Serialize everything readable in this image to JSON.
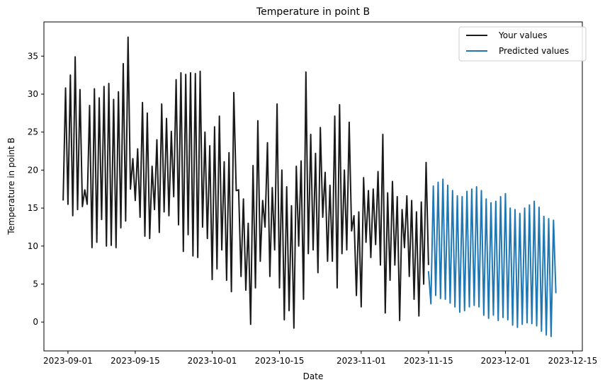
{
  "chart_data": {
    "type": "line",
    "title": "Temperature in point B",
    "xlabel": "Date",
    "ylabel": "Temperature in point B",
    "xlim": [
      "2023-08-27",
      "2023-12-17"
    ],
    "ylim": [
      -3.8,
      39.5
    ],
    "grid": false,
    "legend_position": "top-right",
    "x_ticks": [
      "2023-09-01",
      "2023-09-15",
      "2023-10-01",
      "2023-10-15",
      "2023-11-01",
      "2023-11-15",
      "2023-12-01",
      "2023-12-15"
    ],
    "y_ticks": [
      0,
      5,
      10,
      15,
      20,
      25,
      30,
      35
    ],
    "series": [
      {
        "name": "Your values",
        "color": "#1a1a1a",
        "points": [
          [
            "2023-08-31 00:00",
            16.0
          ],
          [
            "2023-08-31 12:00",
            30.8
          ],
          [
            "2023-09-01 00:00",
            15.5
          ],
          [
            "2023-09-01 12:00",
            32.5
          ],
          [
            "2023-09-02 00:00",
            14.0
          ],
          [
            "2023-09-02 12:00",
            34.9
          ],
          [
            "2023-09-03 00:00",
            14.8
          ],
          [
            "2023-09-03 12:00",
            30.6
          ],
          [
            "2023-09-04 00:00",
            15.2
          ],
          [
            "2023-09-04 12:00",
            17.4
          ],
          [
            "2023-09-05 00:00",
            15.5
          ],
          [
            "2023-09-05 12:00",
            28.5
          ],
          [
            "2023-09-06 00:00",
            9.8
          ],
          [
            "2023-09-06 12:00",
            30.7
          ],
          [
            "2023-09-07 00:00",
            10.5
          ],
          [
            "2023-09-07 12:00",
            29.5
          ],
          [
            "2023-09-08 00:00",
            13.5
          ],
          [
            "2023-09-08 12:00",
            31.0
          ],
          [
            "2023-09-09 00:00",
            10.0
          ],
          [
            "2023-09-09 12:00",
            31.4
          ],
          [
            "2023-09-10 00:00",
            10.1
          ],
          [
            "2023-09-10 12:00",
            29.3
          ],
          [
            "2023-09-11 00:00",
            9.8
          ],
          [
            "2023-09-11 12:00",
            30.3
          ],
          [
            "2023-09-12 00:00",
            12.4
          ],
          [
            "2023-09-12 12:00",
            34.0
          ],
          [
            "2023-09-13 00:00",
            13.3
          ],
          [
            "2023-09-13 12:00",
            37.5
          ],
          [
            "2023-09-14 00:00",
            17.5
          ],
          [
            "2023-09-14 12:00",
            21.5
          ],
          [
            "2023-09-15 00:00",
            16.0
          ],
          [
            "2023-09-15 12:00",
            22.8
          ],
          [
            "2023-09-16 00:00",
            13.8
          ],
          [
            "2023-09-16 12:00",
            28.9
          ],
          [
            "2023-09-17 00:00",
            11.3
          ],
          [
            "2023-09-17 12:00",
            27.5
          ],
          [
            "2023-09-18 00:00",
            11.0
          ],
          [
            "2023-09-18 12:00",
            20.5
          ],
          [
            "2023-09-19 00:00",
            14.8
          ],
          [
            "2023-09-19 12:00",
            24.0
          ],
          [
            "2023-09-20 00:00",
            11.8
          ],
          [
            "2023-09-20 12:00",
            28.7
          ],
          [
            "2023-09-21 00:00",
            14.5
          ],
          [
            "2023-09-21 12:00",
            26.8
          ],
          [
            "2023-09-22 00:00",
            14.0
          ],
          [
            "2023-09-22 12:00",
            25.1
          ],
          [
            "2023-09-23 00:00",
            16.5
          ],
          [
            "2023-09-23 12:00",
            31.9
          ],
          [
            "2023-09-24 00:00",
            12.8
          ],
          [
            "2023-09-24 12:00",
            32.8
          ],
          [
            "2023-09-25 00:00",
            9.3
          ],
          [
            "2023-09-25 12:00",
            32.6
          ],
          [
            "2023-09-26 00:00",
            11.5
          ],
          [
            "2023-09-26 12:00",
            32.8
          ],
          [
            "2023-09-27 00:00",
            8.7
          ],
          [
            "2023-09-27 12:00",
            32.7
          ],
          [
            "2023-09-28 00:00",
            8.5
          ],
          [
            "2023-09-28 12:00",
            33.0
          ],
          [
            "2023-09-29 00:00",
            12.5
          ],
          [
            "2023-09-29 12:00",
            25.0
          ],
          [
            "2023-09-30 00:00",
            11.0
          ],
          [
            "2023-09-30 12:00",
            23.2
          ],
          [
            "2023-10-01 00:00",
            5.6
          ],
          [
            "2023-10-01 12:00",
            25.7
          ],
          [
            "2023-10-02 00:00",
            7.0
          ],
          [
            "2023-10-02 12:00",
            27.1
          ],
          [
            "2023-10-03 00:00",
            9.5
          ],
          [
            "2023-10-03 12:00",
            21.1
          ],
          [
            "2023-10-04 00:00",
            5.5
          ],
          [
            "2023-10-04 12:00",
            22.3
          ],
          [
            "2023-10-05 00:00",
            4.0
          ],
          [
            "2023-10-05 12:00",
            30.2
          ],
          [
            "2023-10-06 00:00",
            17.3
          ],
          [
            "2023-10-06 12:00",
            17.4
          ],
          [
            "2023-10-07 00:00",
            6.0
          ],
          [
            "2023-10-07 12:00",
            16.2
          ],
          [
            "2023-10-08 00:00",
            4.2
          ],
          [
            "2023-10-08 12:00",
            13.0
          ],
          [
            "2023-10-09 00:00",
            -0.3
          ],
          [
            "2023-10-09 12:00",
            20.6
          ],
          [
            "2023-10-10 00:00",
            4.5
          ],
          [
            "2023-10-10 12:00",
            26.5
          ],
          [
            "2023-10-11 00:00",
            8.0
          ],
          [
            "2023-10-11 12:00",
            16.0
          ],
          [
            "2023-10-12 00:00",
            12.5
          ],
          [
            "2023-10-12 12:00",
            23.6
          ],
          [
            "2023-10-13 00:00",
            6.0
          ],
          [
            "2023-10-13 12:00",
            17.7
          ],
          [
            "2023-10-14 00:00",
            9.5
          ],
          [
            "2023-10-14 12:00",
            28.7
          ],
          [
            "2023-10-15 00:00",
            4.5
          ],
          [
            "2023-10-15 12:00",
            20.0
          ],
          [
            "2023-10-16 00:00",
            0.3
          ],
          [
            "2023-10-16 12:00",
            17.8
          ],
          [
            "2023-10-17 00:00",
            1.5
          ],
          [
            "2023-10-17 12:00",
            15.3
          ],
          [
            "2023-10-18 00:00",
            -0.8
          ],
          [
            "2023-10-18 12:00",
            20.5
          ],
          [
            "2023-10-19 00:00",
            10.0
          ],
          [
            "2023-10-19 12:00",
            21.2
          ],
          [
            "2023-10-20 00:00",
            3.0
          ],
          [
            "2023-10-20 12:00",
            32.9
          ],
          [
            "2023-10-21 00:00",
            9.0
          ],
          [
            "2023-10-21 12:00",
            24.7
          ],
          [
            "2023-10-22 00:00",
            9.5
          ],
          [
            "2023-10-22 12:00",
            22.2
          ],
          [
            "2023-10-23 00:00",
            6.5
          ],
          [
            "2023-10-23 12:00",
            25.6
          ],
          [
            "2023-10-24 00:00",
            13.8
          ],
          [
            "2023-10-24 12:00",
            19.7
          ],
          [
            "2023-10-25 00:00",
            8.0
          ],
          [
            "2023-10-25 12:00",
            18.0
          ],
          [
            "2023-10-26 00:00",
            8.0
          ],
          [
            "2023-10-26 12:00",
            27.1
          ],
          [
            "2023-10-27 00:00",
            4.5
          ],
          [
            "2023-10-27 12:00",
            28.6
          ],
          [
            "2023-10-28 00:00",
            9.0
          ],
          [
            "2023-10-28 12:00",
            20.0
          ],
          [
            "2023-10-29 00:00",
            9.5
          ],
          [
            "2023-10-29 12:00",
            26.3
          ],
          [
            "2023-10-30 00:00",
            12.0
          ],
          [
            "2023-10-30 12:00",
            14.0
          ],
          [
            "2023-10-31 00:00",
            3.5
          ],
          [
            "2023-10-31 12:00",
            14.5
          ],
          [
            "2023-11-01 00:00",
            2.0
          ],
          [
            "2023-11-01 12:00",
            19.0
          ],
          [
            "2023-11-02 00:00",
            10.5
          ],
          [
            "2023-11-02 12:00",
            17.3
          ],
          [
            "2023-11-03 00:00",
            8.5
          ],
          [
            "2023-11-03 12:00",
            17.5
          ],
          [
            "2023-11-04 00:00",
            10.2
          ],
          [
            "2023-11-04 12:00",
            19.8
          ],
          [
            "2023-11-05 00:00",
            7.5
          ],
          [
            "2023-11-05 12:00",
            24.7
          ],
          [
            "2023-11-06 00:00",
            1.2
          ],
          [
            "2023-11-06 12:00",
            17.0
          ],
          [
            "2023-11-07 00:00",
            5.5
          ],
          [
            "2023-11-07 12:00",
            18.5
          ],
          [
            "2023-11-08 00:00",
            7.5
          ],
          [
            "2023-11-08 12:00",
            16.5
          ],
          [
            "2023-11-09 00:00",
            0.2
          ],
          [
            "2023-11-09 12:00",
            14.8
          ],
          [
            "2023-11-10 00:00",
            9.8
          ],
          [
            "2023-11-10 12:00",
            16.6
          ],
          [
            "2023-11-11 00:00",
            6.0
          ],
          [
            "2023-11-11 12:00",
            16.0
          ],
          [
            "2023-11-12 00:00",
            3.0
          ],
          [
            "2023-11-12 12:00",
            14.5
          ],
          [
            "2023-11-13 00:00",
            0.8
          ],
          [
            "2023-11-13 12:00",
            15.8
          ],
          [
            "2023-11-14 00:00",
            5.0
          ],
          [
            "2023-11-14 12:00",
            21.0
          ],
          [
            "2023-11-15 00:00",
            7.5
          ]
        ]
      },
      {
        "name": "Predicted values",
        "color": "#1f77b4",
        "points": [
          [
            "2023-11-15 00:00",
            6.7
          ],
          [
            "2023-11-15 12:00",
            2.4
          ],
          [
            "2023-11-16 00:00",
            17.9
          ],
          [
            "2023-11-16 12:00",
            3.5
          ],
          [
            "2023-11-17 00:00",
            18.4
          ],
          [
            "2023-11-17 12:00",
            3.1
          ],
          [
            "2023-11-18 00:00",
            18.8
          ],
          [
            "2023-11-18 12:00",
            3.0
          ],
          [
            "2023-11-19 00:00",
            18.0
          ],
          [
            "2023-11-19 12:00",
            2.5
          ],
          [
            "2023-11-20 00:00",
            17.3
          ],
          [
            "2023-11-20 12:00",
            2.0
          ],
          [
            "2023-11-21 00:00",
            16.6
          ],
          [
            "2023-11-21 12:00",
            1.3
          ],
          [
            "2023-11-22 00:00",
            16.5
          ],
          [
            "2023-11-22 12:00",
            1.5
          ],
          [
            "2023-11-23 00:00",
            17.2
          ],
          [
            "2023-11-23 12:00",
            2.0
          ],
          [
            "2023-11-24 00:00",
            17.5
          ],
          [
            "2023-11-24 12:00",
            2.2
          ],
          [
            "2023-11-25 00:00",
            17.8
          ],
          [
            "2023-11-25 12:00",
            2.0
          ],
          [
            "2023-11-26 00:00",
            17.3
          ],
          [
            "2023-11-26 12:00",
            0.9
          ],
          [
            "2023-11-27 00:00",
            16.2
          ],
          [
            "2023-11-27 12:00",
            0.5
          ],
          [
            "2023-11-28 00:00",
            15.7
          ],
          [
            "2023-11-28 12:00",
            0.9
          ],
          [
            "2023-11-29 00:00",
            15.9
          ],
          [
            "2023-11-29 12:00",
            0.2
          ],
          [
            "2023-11-30 00:00",
            16.5
          ],
          [
            "2023-11-30 12:00",
            0.6
          ],
          [
            "2023-12-01 00:00",
            16.9
          ],
          [
            "2023-12-01 12:00",
            0.3
          ],
          [
            "2023-12-02 00:00",
            15.0
          ],
          [
            "2023-12-02 12:00",
            -0.4
          ],
          [
            "2023-12-03 00:00",
            14.8
          ],
          [
            "2023-12-03 12:00",
            -0.7
          ],
          [
            "2023-12-04 00:00",
            14.3
          ],
          [
            "2023-12-04 12:00",
            -0.3
          ],
          [
            "2023-12-05 00:00",
            15.0
          ],
          [
            "2023-12-05 12:00",
            -0.1
          ],
          [
            "2023-12-06 00:00",
            15.4
          ],
          [
            "2023-12-06 12:00",
            -0.2
          ],
          [
            "2023-12-07 00:00",
            15.9
          ],
          [
            "2023-12-07 12:00",
            -0.5
          ],
          [
            "2023-12-08 00:00",
            15.1
          ],
          [
            "2023-12-08 12:00",
            -1.2
          ],
          [
            "2023-12-09 00:00",
            13.9
          ],
          [
            "2023-12-09 12:00",
            -1.7
          ],
          [
            "2023-12-10 00:00",
            13.6
          ],
          [
            "2023-12-10 12:00",
            -1.9
          ],
          [
            "2023-12-11 00:00",
            13.4
          ],
          [
            "2023-12-11 12:00",
            3.8
          ]
        ]
      }
    ]
  }
}
